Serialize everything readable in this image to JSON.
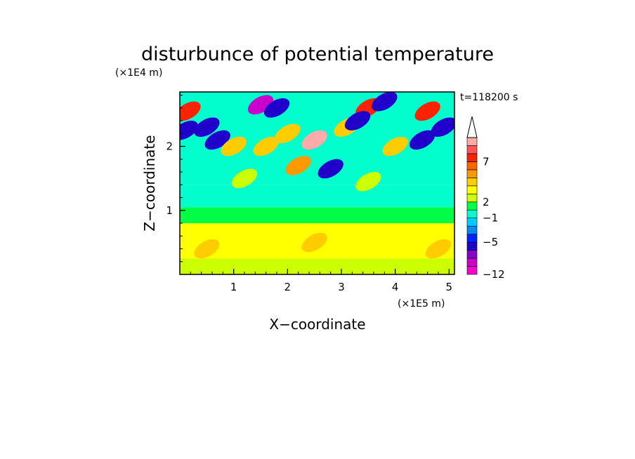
{
  "chart_data": {
    "type": "heatmap",
    "title": "disturbunce of potential temperature",
    "xlabel": "X−coordinate",
    "ylabel": "Z−coordinate",
    "x_unit": "(×1E5 m)",
    "y_unit": "(×1E4 m)",
    "time_label": "t=118200 s",
    "xlim": [
      0,
      5.1
    ],
    "ylim": [
      0,
      2.85
    ],
    "x_ticks": [
      1,
      2,
      3,
      4,
      5
    ],
    "y_ticks": [
      1,
      2
    ],
    "x_tick_labels": [
      "1",
      "2",
      "3",
      "4",
      "5"
    ],
    "y_tick_labels": [
      "1",
      "2"
    ],
    "colorbar": {
      "levels": [
        -12,
        -10,
        -8,
        -6,
        -5,
        -4,
        -3,
        -1,
        1,
        2,
        3,
        4,
        5,
        6,
        7,
        8,
        9,
        10
      ],
      "labels": [
        {
          "value": -12,
          "text": "−12"
        },
        {
          "value": -5,
          "text": "−5"
        },
        {
          "value": -1,
          "text": "−1"
        },
        {
          "value": 2,
          "text": "2"
        },
        {
          "value": 7,
          "text": "7"
        }
      ],
      "colors": [
        "#ff00cc",
        "#cc00cc",
        "#8800cc",
        "#2200cc",
        "#0022ff",
        "#0088ff",
        "#00ccff",
        "#00ffcc",
        "#00ff44",
        "#ccff00",
        "#ffff00",
        "#ffcc00",
        "#ff9900",
        "#ff6600",
        "#ff2200",
        "#ff5555",
        "#ffaaaa"
      ],
      "overflow_arrow": "top"
    },
    "bands": [
      {
        "zmin": 0.0,
        "zmax": 0.25,
        "value": 2.5
      },
      {
        "zmin": 0.25,
        "zmax": 0.8,
        "value": 3.5
      },
      {
        "zmin": 0.8,
        "zmax": 1.05,
        "value": 1.5
      },
      {
        "zmin": 1.05,
        "zmax": 1.4,
        "value": 0.5
      },
      {
        "zmin": 1.4,
        "zmax": 2.85,
        "value": 0.0
      }
    ],
    "features": [
      {
        "x": 0.15,
        "z": 2.55,
        "value": 7.5
      },
      {
        "x": 0.1,
        "z": 2.25,
        "value": -5.5
      },
      {
        "x": 0.5,
        "z": 2.3,
        "value": -5.5
      },
      {
        "x": 0.7,
        "z": 2.1,
        "value": -5.5
      },
      {
        "x": 1.0,
        "z": 2.0,
        "value": 4.5
      },
      {
        "x": 1.5,
        "z": 2.65,
        "value": -8.5
      },
      {
        "x": 1.8,
        "z": 2.6,
        "value": -5.5
      },
      {
        "x": 1.6,
        "z": 2.0,
        "value": 4.5
      },
      {
        "x": 2.0,
        "z": 2.2,
        "value": 4.5
      },
      {
        "x": 2.5,
        "z": 2.1,
        "value": 9.5
      },
      {
        "x": 2.2,
        "z": 1.7,
        "value": 5.5
      },
      {
        "x": 2.8,
        "z": 1.65,
        "value": -5.5
      },
      {
        "x": 3.1,
        "z": 2.3,
        "value": 4.5
      },
      {
        "x": 3.5,
        "z": 2.6,
        "value": 7.5
      },
      {
        "x": 3.3,
        "z": 2.4,
        "value": -5.5
      },
      {
        "x": 3.8,
        "z": 2.7,
        "value": -5.5
      },
      {
        "x": 4.0,
        "z": 2.0,
        "value": 4.5
      },
      {
        "x": 4.6,
        "z": 2.55,
        "value": 7.5
      },
      {
        "x": 4.5,
        "z": 2.1,
        "value": -5.5
      },
      {
        "x": 4.9,
        "z": 2.3,
        "value": -5.5
      },
      {
        "x": 3.5,
        "z": 1.45,
        "value": 2.5
      },
      {
        "x": 1.2,
        "z": 1.5,
        "value": 2.5
      },
      {
        "x": 0.5,
        "z": 0.4,
        "value": 4.5
      },
      {
        "x": 4.8,
        "z": 0.4,
        "value": 4.5
      },
      {
        "x": 2.5,
        "z": 0.5,
        "value": 4.5
      }
    ]
  }
}
